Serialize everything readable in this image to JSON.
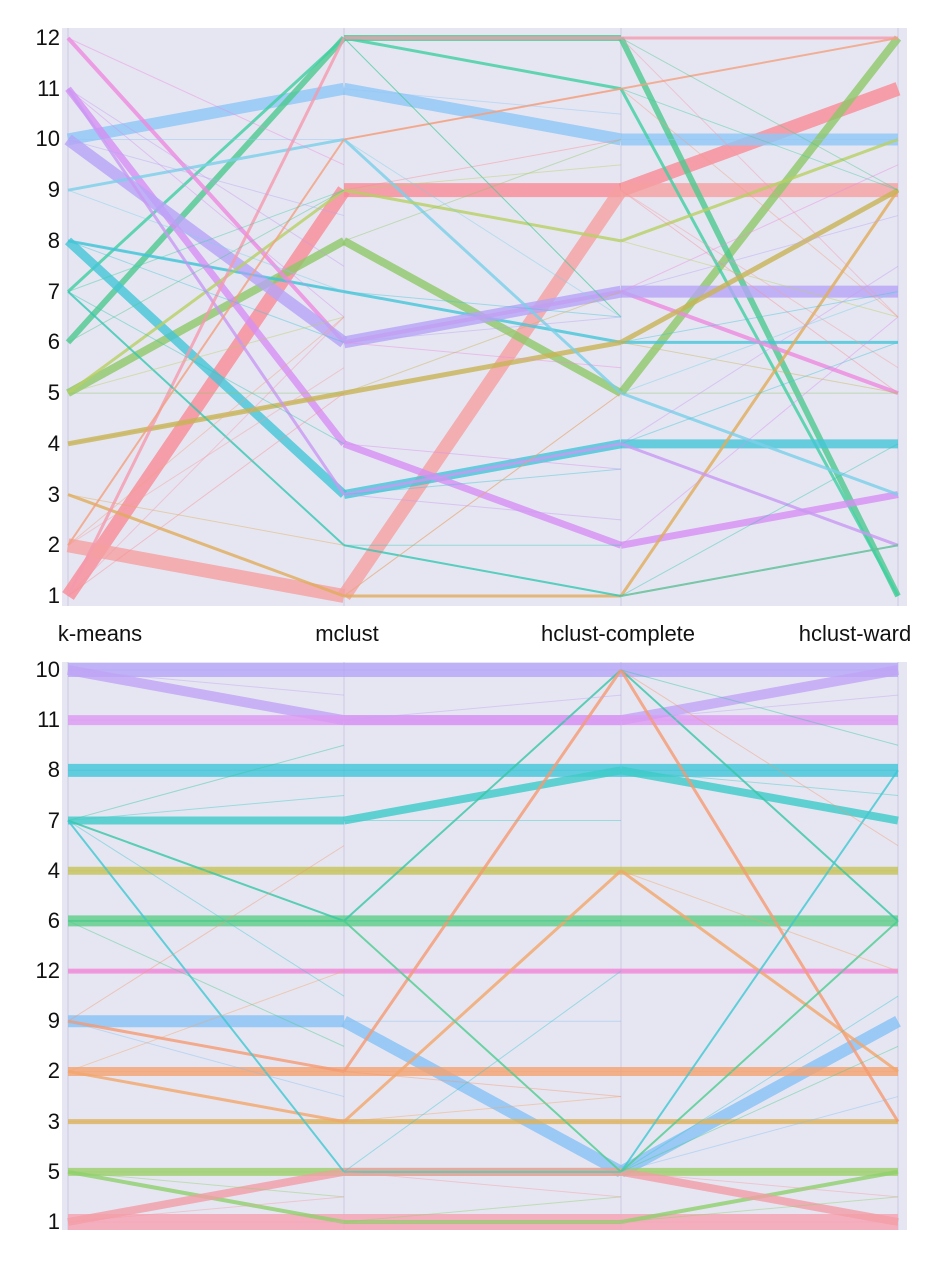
{
  "chart_data": [
    {
      "type": "parallel-categories",
      "axes": [
        "k-means",
        "mclust",
        "hclust-complete",
        "hclust-ward"
      ],
      "categories_top_to_bottom": [
        "12",
        "11",
        "10",
        "9",
        "8",
        "7",
        "6",
        "5",
        "4",
        "3",
        "2",
        "1"
      ],
      "tick_labels": [
        "12",
        "11",
        "10",
        "9",
        "8",
        "7",
        "6",
        "5",
        "4",
        "3",
        "2",
        "1"
      ],
      "background": "#e6e6f2",
      "grid": false,
      "flows": [
        {
          "path": [
            "1",
            "9",
            "9",
            "11"
          ],
          "weight": 14,
          "color": "#f98b95"
        },
        {
          "path": [
            "2",
            "1",
            "9",
            "9"
          ],
          "weight": 14,
          "color": "#f5a0a0"
        },
        {
          "path": [
            "10",
            "11",
            "10",
            "10"
          ],
          "weight": 12,
          "color": "#8ec7f6"
        },
        {
          "path": [
            "5",
            "8",
            "5",
            "12"
          ],
          "weight": 8,
          "color": "#8fc868"
        },
        {
          "path": [
            "6",
            "12",
            "12",
            "1"
          ],
          "weight": 6,
          "color": "#4ec98e"
        },
        {
          "path": [
            "7",
            "12",
            "11",
            "1"
          ],
          "weight": 3,
          "color": "#3fcfa0"
        },
        {
          "path": [
            "8",
            "3",
            "4",
            "4"
          ],
          "weight": 9,
          "color": "#43c5d7"
        },
        {
          "path": [
            "8",
            "7",
            "6",
            "6"
          ],
          "weight": 3,
          "color": "#43c5d7"
        },
        {
          "path": [
            "11",
            "4",
            "2",
            "3"
          ],
          "weight": 7,
          "color": "#d68ef2"
        },
        {
          "path": [
            "12",
            "6",
            "7",
            "5"
          ],
          "weight": 4,
          "color": "#ee8adf"
        },
        {
          "path": [
            "10",
            "6",
            "7",
            "7"
          ],
          "weight": 12,
          "color": "#b6a4f6"
        },
        {
          "path": [
            "3",
            "1",
            "1",
            "9"
          ],
          "weight": 3,
          "color": "#e0ad5a"
        },
        {
          "path": [
            "4",
            "5",
            "6",
            "9"
          ],
          "weight": 5,
          "color": "#c8b455"
        },
        {
          "path": [
            "9",
            "10",
            "5",
            "3"
          ],
          "weight": 3,
          "color": "#7ad0e8"
        },
        {
          "path": [
            "5",
            "9",
            "8",
            "10"
          ],
          "weight": 3,
          "color": "#b8d063"
        },
        {
          "path": [
            "11",
            "3",
            "4",
            "2"
          ],
          "weight": 3,
          "color": "#c899f2"
        },
        {
          "path": [
            "1",
            "12",
            "12",
            "12"
          ],
          "weight": 3,
          "color": "#f49aac"
        },
        {
          "path": [
            "7",
            "2",
            "1",
            "2"
          ],
          "weight": 2,
          "color": "#33c8b2"
        },
        {
          "path": [
            "2",
            "10",
            "11",
            "12"
          ],
          "weight": 2,
          "color": "#f4a07e"
        }
      ]
    },
    {
      "type": "parallel-categories",
      "axes": [
        "k-means",
        "mclust",
        "hclust-complete",
        "hclust-ward"
      ],
      "categories_top_to_bottom": [
        "10",
        "11",
        "8",
        "7",
        "4",
        "6",
        "12",
        "9",
        "2",
        "3",
        "5",
        "1"
      ],
      "tick_labels": [
        "10",
        "11",
        "8",
        "7",
        "4",
        "6",
        "12",
        "9",
        "2",
        "3",
        "5",
        "1"
      ],
      "background": "#e6e6f2",
      "grid": false,
      "flows": [
        {
          "path": [
            "10",
            "10",
            "10",
            "10"
          ],
          "weight": 14,
          "color": "#b5a5f7"
        },
        {
          "path": [
            "10",
            "11",
            "11",
            "10"
          ],
          "weight": 10,
          "color": "#c0a4f5"
        },
        {
          "path": [
            "11",
            "11",
            "11",
            "11"
          ],
          "weight": 10,
          "color": "#dd98f2"
        },
        {
          "path": [
            "8",
            "8",
            "8",
            "8"
          ],
          "weight": 13,
          "color": "#3fc6d7"
        },
        {
          "path": [
            "7",
            "7",
            "8",
            "7"
          ],
          "weight": 8,
          "color": "#3dcbc8"
        },
        {
          "path": [
            "4",
            "4",
            "4",
            "4"
          ],
          "weight": 8,
          "color": "#c5c257"
        },
        {
          "path": [
            "6",
            "6",
            "6",
            "6"
          ],
          "weight": 11,
          "color": "#5ccd86"
        },
        {
          "path": [
            "12",
            "12",
            "12",
            "12"
          ],
          "weight": 5,
          "color": "#f088d8"
        },
        {
          "path": [
            "9",
            "9",
            "5",
            "9"
          ],
          "weight": 12,
          "color": "#86c2f4"
        },
        {
          "path": [
            "2",
            "2",
            "2",
            "2"
          ],
          "weight": 9,
          "color": "#f4a36f"
        },
        {
          "path": [
            "3",
            "3",
            "3",
            "3"
          ],
          "weight": 5,
          "color": "#dcb25b"
        },
        {
          "path": [
            "5",
            "5",
            "5",
            "5"
          ],
          "weight": 8,
          "color": "#9bd068"
        },
        {
          "path": [
            "1",
            "1",
            "1",
            "1"
          ],
          "weight": 16,
          "color": "#f7a1b2"
        },
        {
          "path": [
            "5",
            "1",
            "1",
            "5"
          ],
          "weight": 4,
          "color": "#8fd06b"
        },
        {
          "path": [
            "1",
            "5",
            "5",
            "1"
          ],
          "weight": 8,
          "color": "#f39da6"
        },
        {
          "path": [
            "7",
            "6",
            "10",
            "6"
          ],
          "weight": 2,
          "color": "#36c7a5"
        },
        {
          "path": [
            "9",
            "2",
            "10",
            "3"
          ],
          "weight": 3,
          "color": "#f59a72"
        },
        {
          "path": [
            "2",
            "3",
            "4",
            "2"
          ],
          "weight": 3,
          "color": "#f2a66a"
        },
        {
          "path": [
            "7",
            "5",
            "5",
            "8"
          ],
          "weight": 2,
          "color": "#3fc8d2"
        },
        {
          "path": [
            "6",
            "6",
            "5",
            "6"
          ],
          "weight": 2,
          "color": "#4ccd8f"
        }
      ]
    }
  ]
}
